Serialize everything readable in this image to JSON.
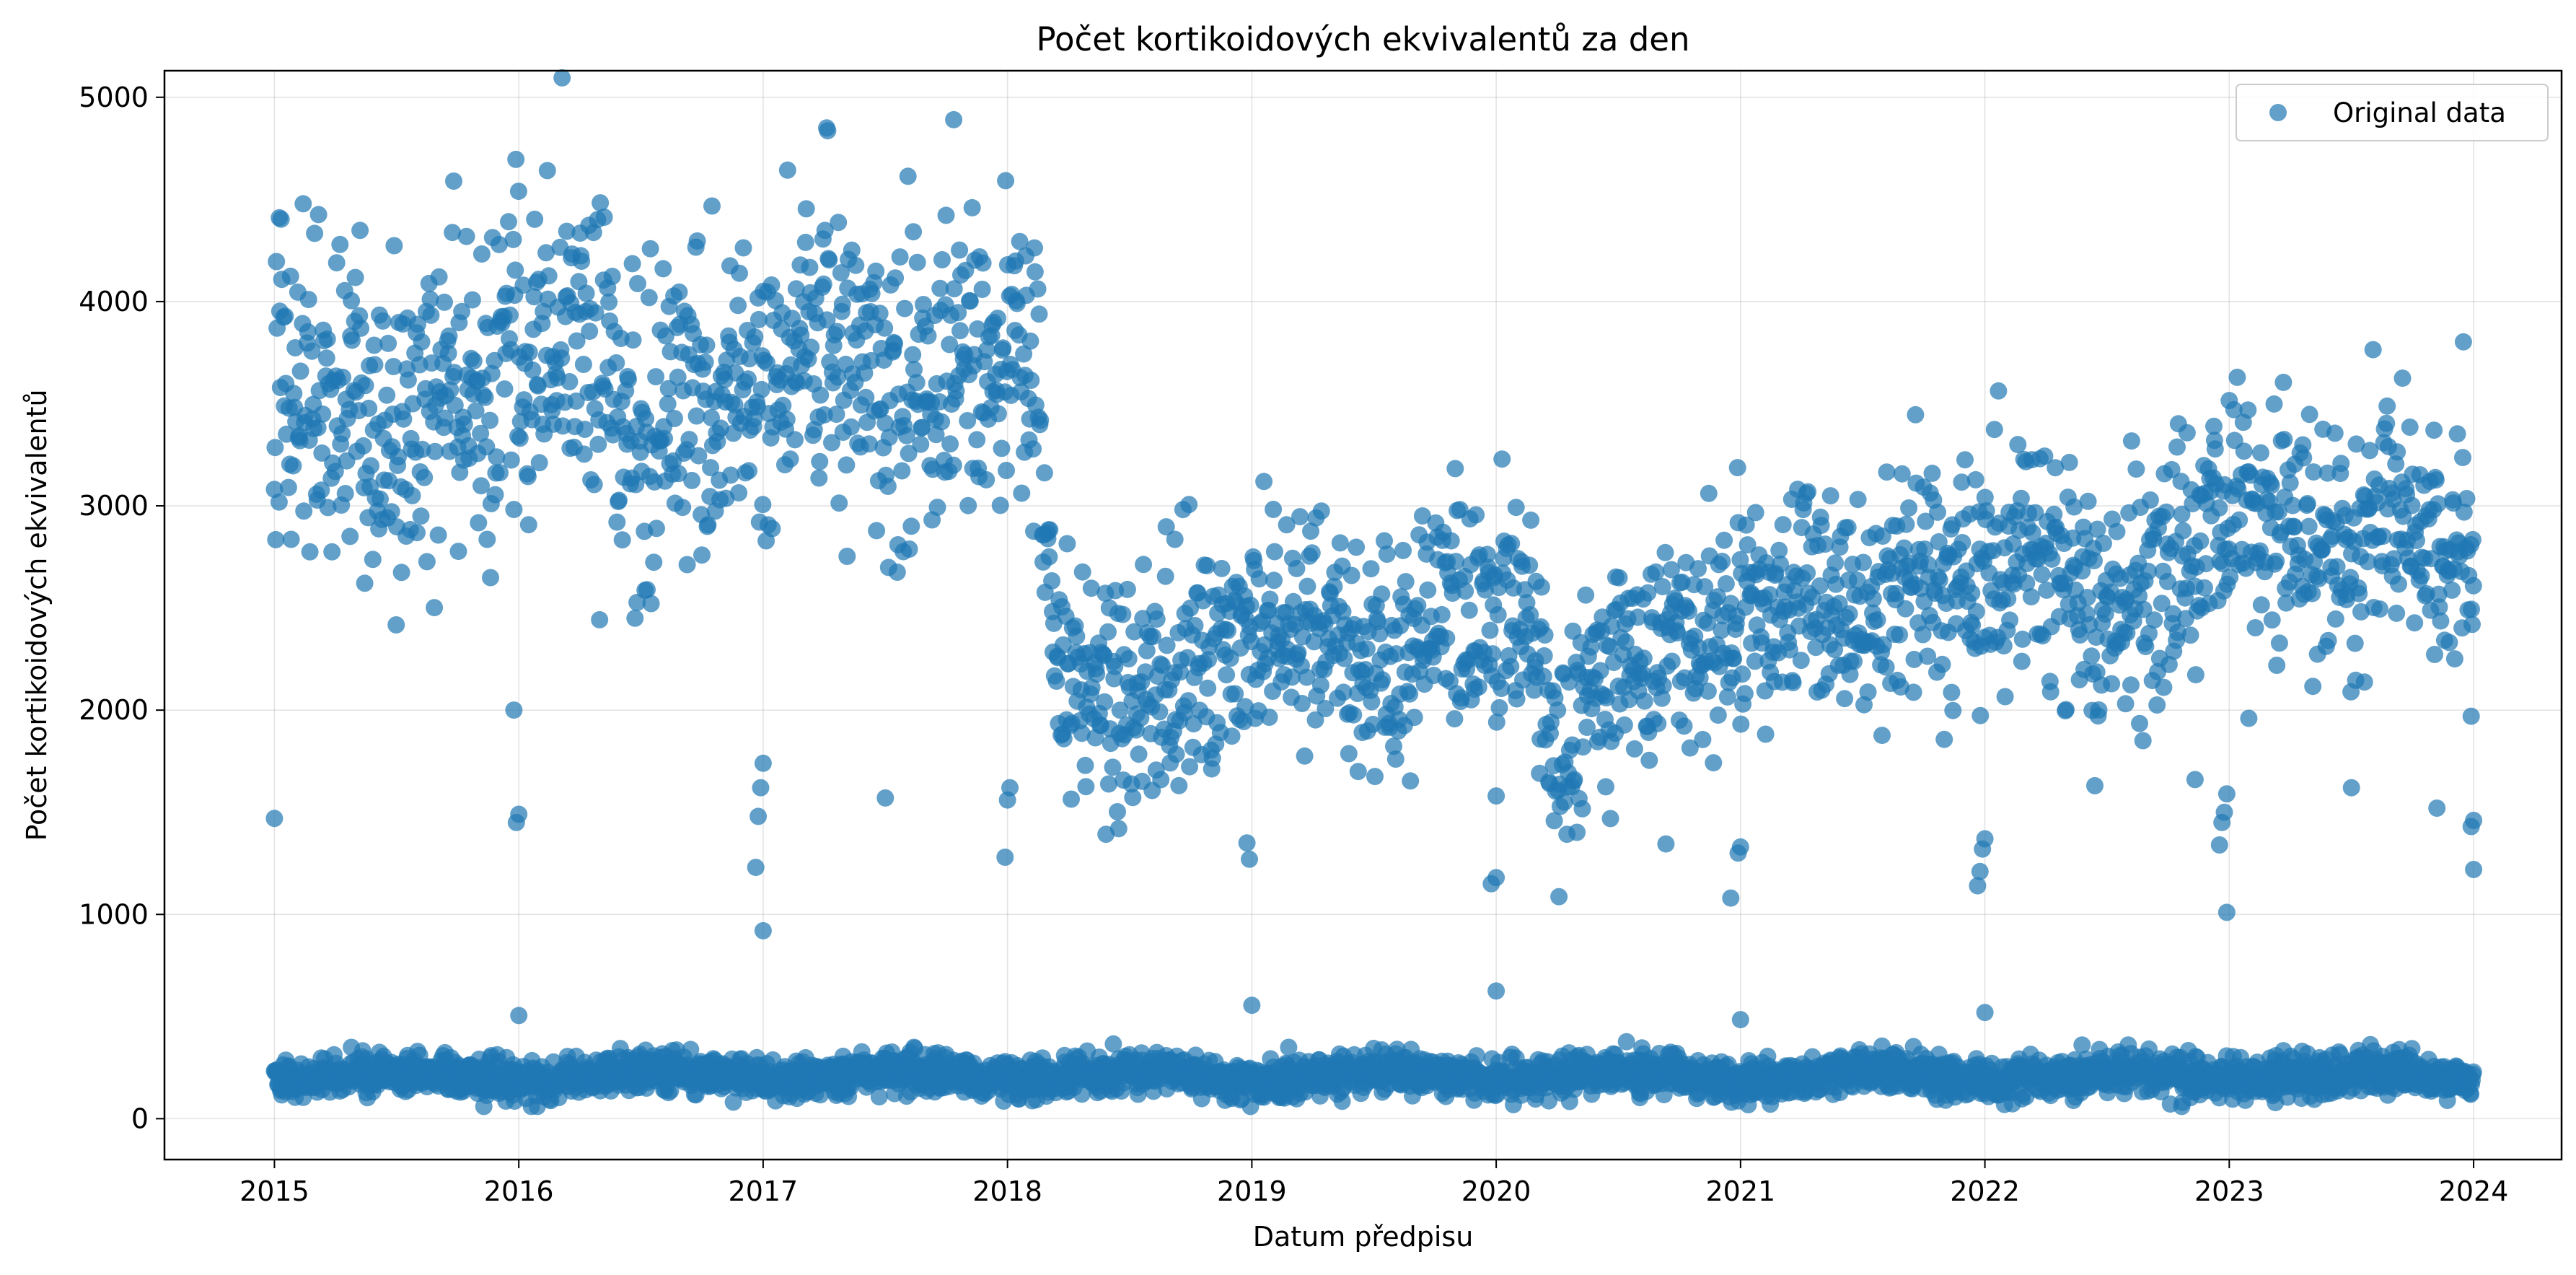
{
  "chart_data": {
    "type": "scatter",
    "title": "Počet kortikoidových ekvivalentů za den",
    "xlabel": "Datum předpisu",
    "ylabel": "Počet kortikoidových ekvivalentů",
    "x_ticks": [
      "2015",
      "2016",
      "2017",
      "2018",
      "2019",
      "2020",
      "2021",
      "2022",
      "2023",
      "2024"
    ],
    "y_ticks": [
      "0",
      "1000",
      "2000",
      "3000",
      "4000",
      "5000"
    ],
    "xlim": [
      2014.55,
      2024.36
    ],
    "ylim": [
      -200,
      5130
    ],
    "grid": true,
    "legend": {
      "position": "top-right",
      "entries": [
        "Original data"
      ]
    },
    "point_color": "#1f77b4",
    "series": [
      {
        "name": "Original data",
        "upper_band_mean": [
          {
            "t": 2015.0,
            "v": 3650
          },
          {
            "t": 2015.25,
            "v": 3600
          },
          {
            "t": 2015.5,
            "v": 3250
          },
          {
            "t": 2015.75,
            "v": 3700
          },
          {
            "t": 2016.0,
            "v": 3600
          },
          {
            "t": 2016.25,
            "v": 3800
          },
          {
            "t": 2016.5,
            "v": 3350
          },
          {
            "t": 2016.75,
            "v": 3500
          },
          {
            "t": 2017.0,
            "v": 3500
          },
          {
            "t": 2017.25,
            "v": 3900
          },
          {
            "t": 2017.5,
            "v": 3500
          },
          {
            "t": 2017.75,
            "v": 3700
          },
          {
            "t": 2018.0,
            "v": 3800
          },
          {
            "t": 2018.1,
            "v": 3600
          },
          {
            "t": 2018.2,
            "v": 2300
          },
          {
            "t": 2018.5,
            "v": 2100
          },
          {
            "t": 2018.75,
            "v": 2300
          },
          {
            "t": 2019.0,
            "v": 2400
          },
          {
            "t": 2019.25,
            "v": 2450
          },
          {
            "t": 2019.5,
            "v": 2200
          },
          {
            "t": 2019.75,
            "v": 2500
          },
          {
            "t": 2020.0,
            "v": 2550
          },
          {
            "t": 2020.15,
            "v": 2450
          },
          {
            "t": 2020.25,
            "v": 1500
          },
          {
            "t": 2020.4,
            "v": 2200
          },
          {
            "t": 2020.6,
            "v": 2250
          },
          {
            "t": 2020.8,
            "v": 2300
          },
          {
            "t": 2021.0,
            "v": 2400
          },
          {
            "t": 2021.25,
            "v": 2600
          },
          {
            "t": 2021.5,
            "v": 2400
          },
          {
            "t": 2021.75,
            "v": 2700
          },
          {
            "t": 2022.0,
            "v": 2650
          },
          {
            "t": 2022.25,
            "v": 2800
          },
          {
            "t": 2022.5,
            "v": 2450
          },
          {
            "t": 2022.75,
            "v": 2700
          },
          {
            "t": 2023.0,
            "v": 3000
          },
          {
            "t": 2023.25,
            "v": 2900
          },
          {
            "t": 2023.5,
            "v": 2750
          },
          {
            "t": 2023.75,
            "v": 2900
          },
          {
            "t": 2024.0,
            "v": 2800
          }
        ],
        "lower_band_mean": 210,
        "outliers": [
          {
            "t": 2015.0,
            "v": 1470
          },
          {
            "t": 2015.02,
            "v": 4410
          },
          {
            "t": 2015.98,
            "v": 2000
          },
          {
            "t": 2015.99,
            "v": 1450
          },
          {
            "t": 2016.0,
            "v": 1490
          },
          {
            "t": 2016.0,
            "v": 505
          },
          {
            "t": 2016.97,
            "v": 1230
          },
          {
            "t": 2016.98,
            "v": 1480
          },
          {
            "t": 2016.99,
            "v": 1620
          },
          {
            "t": 2017.0,
            "v": 1740
          },
          {
            "t": 2017.0,
            "v": 920
          },
          {
            "t": 2017.26,
            "v": 4850
          },
          {
            "t": 2017.5,
            "v": 1570
          },
          {
            "t": 2017.78,
            "v": 4890
          },
          {
            "t": 2017.99,
            "v": 1280
          },
          {
            "t": 2018.0,
            "v": 1560
          },
          {
            "t": 2018.01,
            "v": 1620
          },
          {
            "t": 2018.99,
            "v": 1270
          },
          {
            "t": 2018.98,
            "v": 1350
          },
          {
            "t": 2019.0,
            "v": 555
          },
          {
            "t": 2019.98,
            "v": 1150
          },
          {
            "t": 2020.0,
            "v": 1180
          },
          {
            "t": 2020.0,
            "v": 1580
          },
          {
            "t": 2020.0,
            "v": 625
          },
          {
            "t": 2020.96,
            "v": 1080
          },
          {
            "t": 2020.99,
            "v": 1300
          },
          {
            "t": 2021.0,
            "v": 1330
          },
          {
            "t": 2021.0,
            "v": 485
          },
          {
            "t": 2021.97,
            "v": 1140
          },
          {
            "t": 2021.98,
            "v": 1210
          },
          {
            "t": 2021.99,
            "v": 1320
          },
          {
            "t": 2022.0,
            "v": 1370
          },
          {
            "t": 2022.0,
            "v": 520
          },
          {
            "t": 2022.45,
            "v": 1630
          },
          {
            "t": 2022.86,
            "v": 1660
          },
          {
            "t": 2022.96,
            "v": 1340
          },
          {
            "t": 2022.97,
            "v": 1450
          },
          {
            "t": 2022.98,
            "v": 1500
          },
          {
            "t": 2022.99,
            "v": 1590
          },
          {
            "t": 2022.99,
            "v": 1010
          },
          {
            "t": 2023.08,
            "v": 1960
          },
          {
            "t": 2023.5,
            "v": 1620
          },
          {
            "t": 2023.85,
            "v": 1520
          },
          {
            "t": 2023.99,
            "v": 1430
          },
          {
            "t": 2024.0,
            "v": 1460
          },
          {
            "t": 2024.0,
            "v": 1220
          },
          {
            "t": 2023.99,
            "v": 1970
          }
        ]
      }
    ]
  }
}
